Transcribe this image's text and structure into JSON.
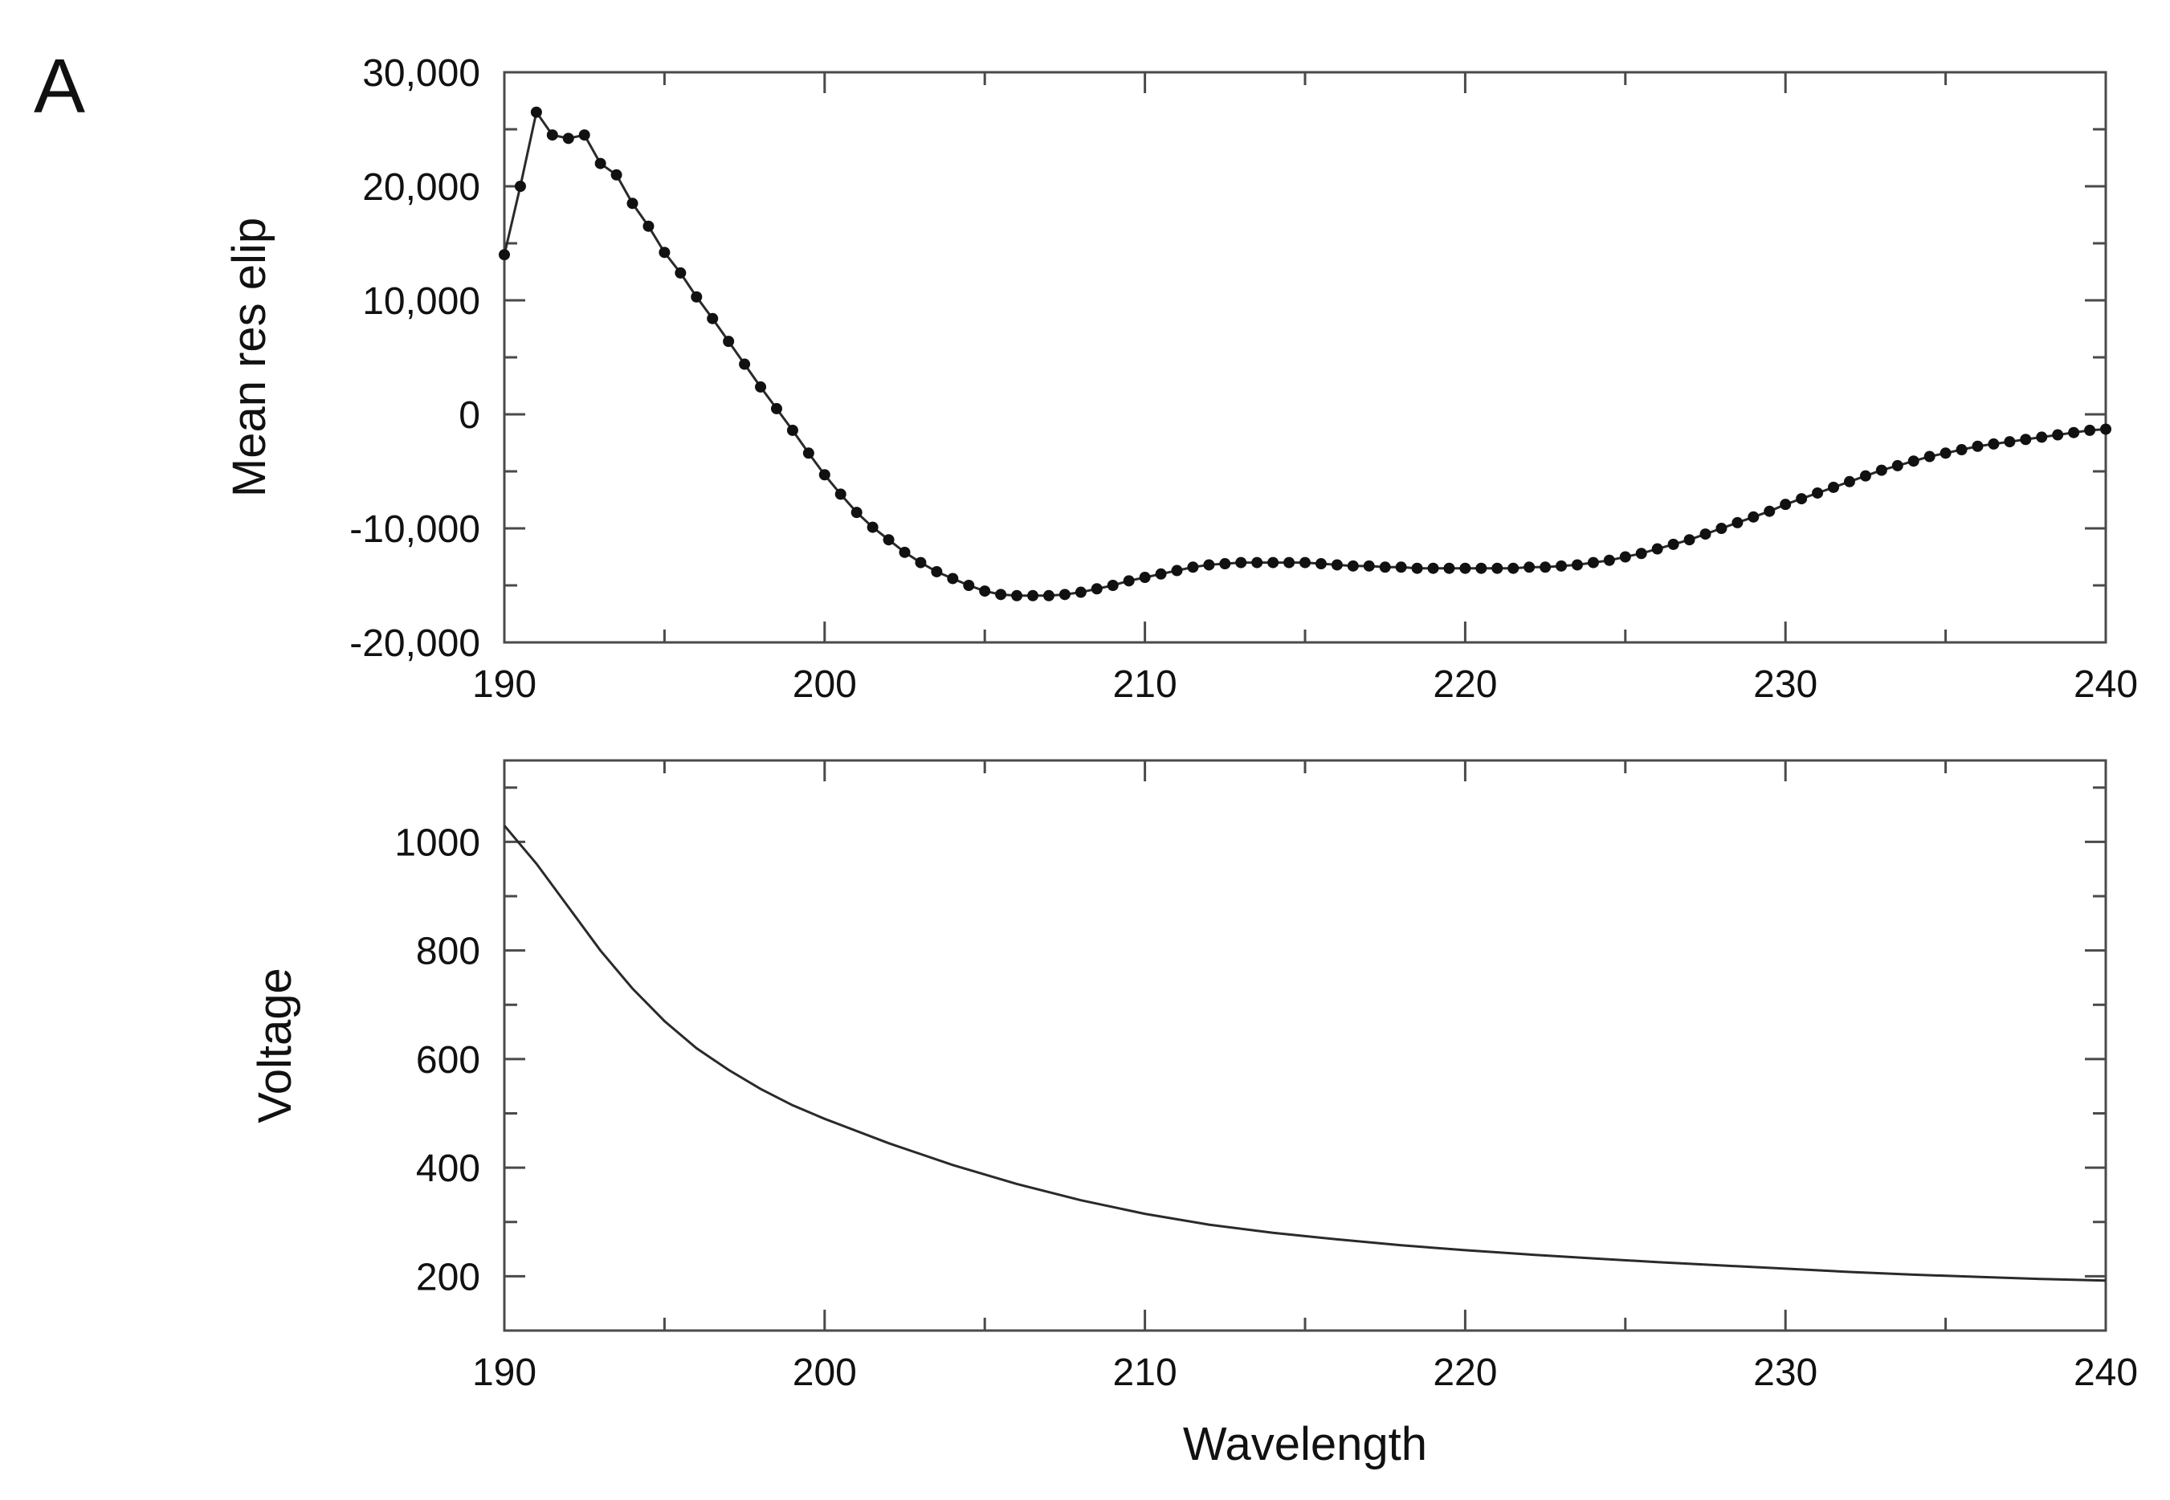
{
  "panel_label": "A",
  "chart_data": [
    {
      "type": "line",
      "title": "",
      "xlabel": "",
      "ylabel": "Mean res elip",
      "xlim": [
        190,
        240
      ],
      "ylim": [
        -20000,
        30000
      ],
      "x_ticks": [
        190,
        200,
        210,
        220,
        230,
        240
      ],
      "x_tick_labels": [
        "190",
        "200",
        "210",
        "220",
        "230",
        "240"
      ],
      "y_ticks": [
        30000,
        20000,
        10000,
        0,
        -10000,
        -20000
      ],
      "y_tick_labels": [
        "30,000",
        "20,000",
        "10,000",
        "0",
        "-10,000",
        "-20,000"
      ],
      "grid": false,
      "markers": true,
      "color": "#1a1a1a",
      "series": [
        {
          "x": [
            190,
            190.5,
            191,
            191.5,
            192,
            192.5,
            193,
            193.5,
            194,
            194.5,
            195,
            195.5,
            196,
            196.5,
            197,
            197.5,
            198,
            198.5,
            199,
            199.5,
            200,
            200.5,
            201,
            201.5,
            202,
            202.5,
            203,
            203.5,
            204,
            204.5,
            205,
            205.5,
            206,
            206.5,
            207,
            207.5,
            208,
            208.5,
            209,
            209.5,
            210,
            210.5,
            211,
            211.5,
            212,
            212.5,
            213,
            213.5,
            214,
            214.5,
            215,
            215.5,
            216,
            216.5,
            217,
            217.5,
            218,
            218.5,
            219,
            219.5,
            220,
            220.5,
            221,
            221.5,
            222,
            222.5,
            223,
            223.5,
            224,
            224.5,
            225,
            225.5,
            226,
            226.5,
            227,
            227.5,
            228,
            228.5,
            229,
            229.5,
            230,
            230.5,
            231,
            231.5,
            232,
            232.5,
            233,
            233.5,
            234,
            234.5,
            235,
            235.5,
            236,
            236.5,
            237,
            237.5,
            238,
            238.5,
            239,
            239.5,
            240
          ],
          "y": [
            14000,
            20000,
            26500,
            24500,
            24200,
            24500,
            22000,
            21000,
            18500,
            16500,
            14200,
            12400,
            10300,
            8400,
            6400,
            4400,
            2400,
            500,
            -1400,
            -3400,
            -5300,
            -7000,
            -8600,
            -9900,
            -11000,
            -12100,
            -13000,
            -13800,
            -14400,
            -15000,
            -15500,
            -15800,
            -15900,
            -15900,
            -15900,
            -15800,
            -15600,
            -15300,
            -15000,
            -14600,
            -14300,
            -14000,
            -13700,
            -13400,
            -13200,
            -13100,
            -13000,
            -13000,
            -13000,
            -13000,
            -13000,
            -13100,
            -13200,
            -13300,
            -13300,
            -13400,
            -13400,
            -13500,
            -13500,
            -13500,
            -13500,
            -13500,
            -13500,
            -13500,
            -13400,
            -13400,
            -13300,
            -13200,
            -13000,
            -12800,
            -12500,
            -12200,
            -11800,
            -11400,
            -11000,
            -10500,
            -10000,
            -9500,
            -9000,
            -8500,
            -7900,
            -7400,
            -6900,
            -6400,
            -5900,
            -5400,
            -4900,
            -4500,
            -4100,
            -3700,
            -3400,
            -3100,
            -2800,
            -2600,
            -2400,
            -2200,
            -2000,
            -1800,
            -1600,
            -1400,
            -1300
          ]
        }
      ]
    },
    {
      "type": "line",
      "title": "",
      "xlabel": "Wavelength",
      "ylabel": "Voltage",
      "xlim": [
        190,
        240
      ],
      "ylim": [
        100,
        1150
      ],
      "x_ticks": [
        190,
        200,
        210,
        220,
        230,
        240
      ],
      "x_tick_labels": [
        "190",
        "200",
        "210",
        "220",
        "230",
        "240"
      ],
      "y_ticks": [
        1000,
        800,
        600,
        400,
        200
      ],
      "y_tick_labels": [
        "1000",
        "800",
        "600",
        "400",
        "200"
      ],
      "grid": false,
      "markers": false,
      "color": "#333333",
      "series": [
        {
          "x": [
            190,
            191,
            192,
            193,
            194,
            195,
            196,
            197,
            198,
            199,
            200,
            202,
            204,
            206,
            208,
            210,
            212,
            214,
            216,
            218,
            220,
            222,
            224,
            226,
            228,
            230,
            232,
            234,
            236,
            238,
            240
          ],
          "y": [
            1030,
            960,
            880,
            800,
            730,
            670,
            620,
            580,
            545,
            515,
            490,
            445,
            405,
            370,
            340,
            315,
            295,
            280,
            268,
            257,
            248,
            240,
            233,
            226,
            220,
            214,
            208,
            203,
            199,
            195,
            192
          ]
        }
      ]
    }
  ]
}
